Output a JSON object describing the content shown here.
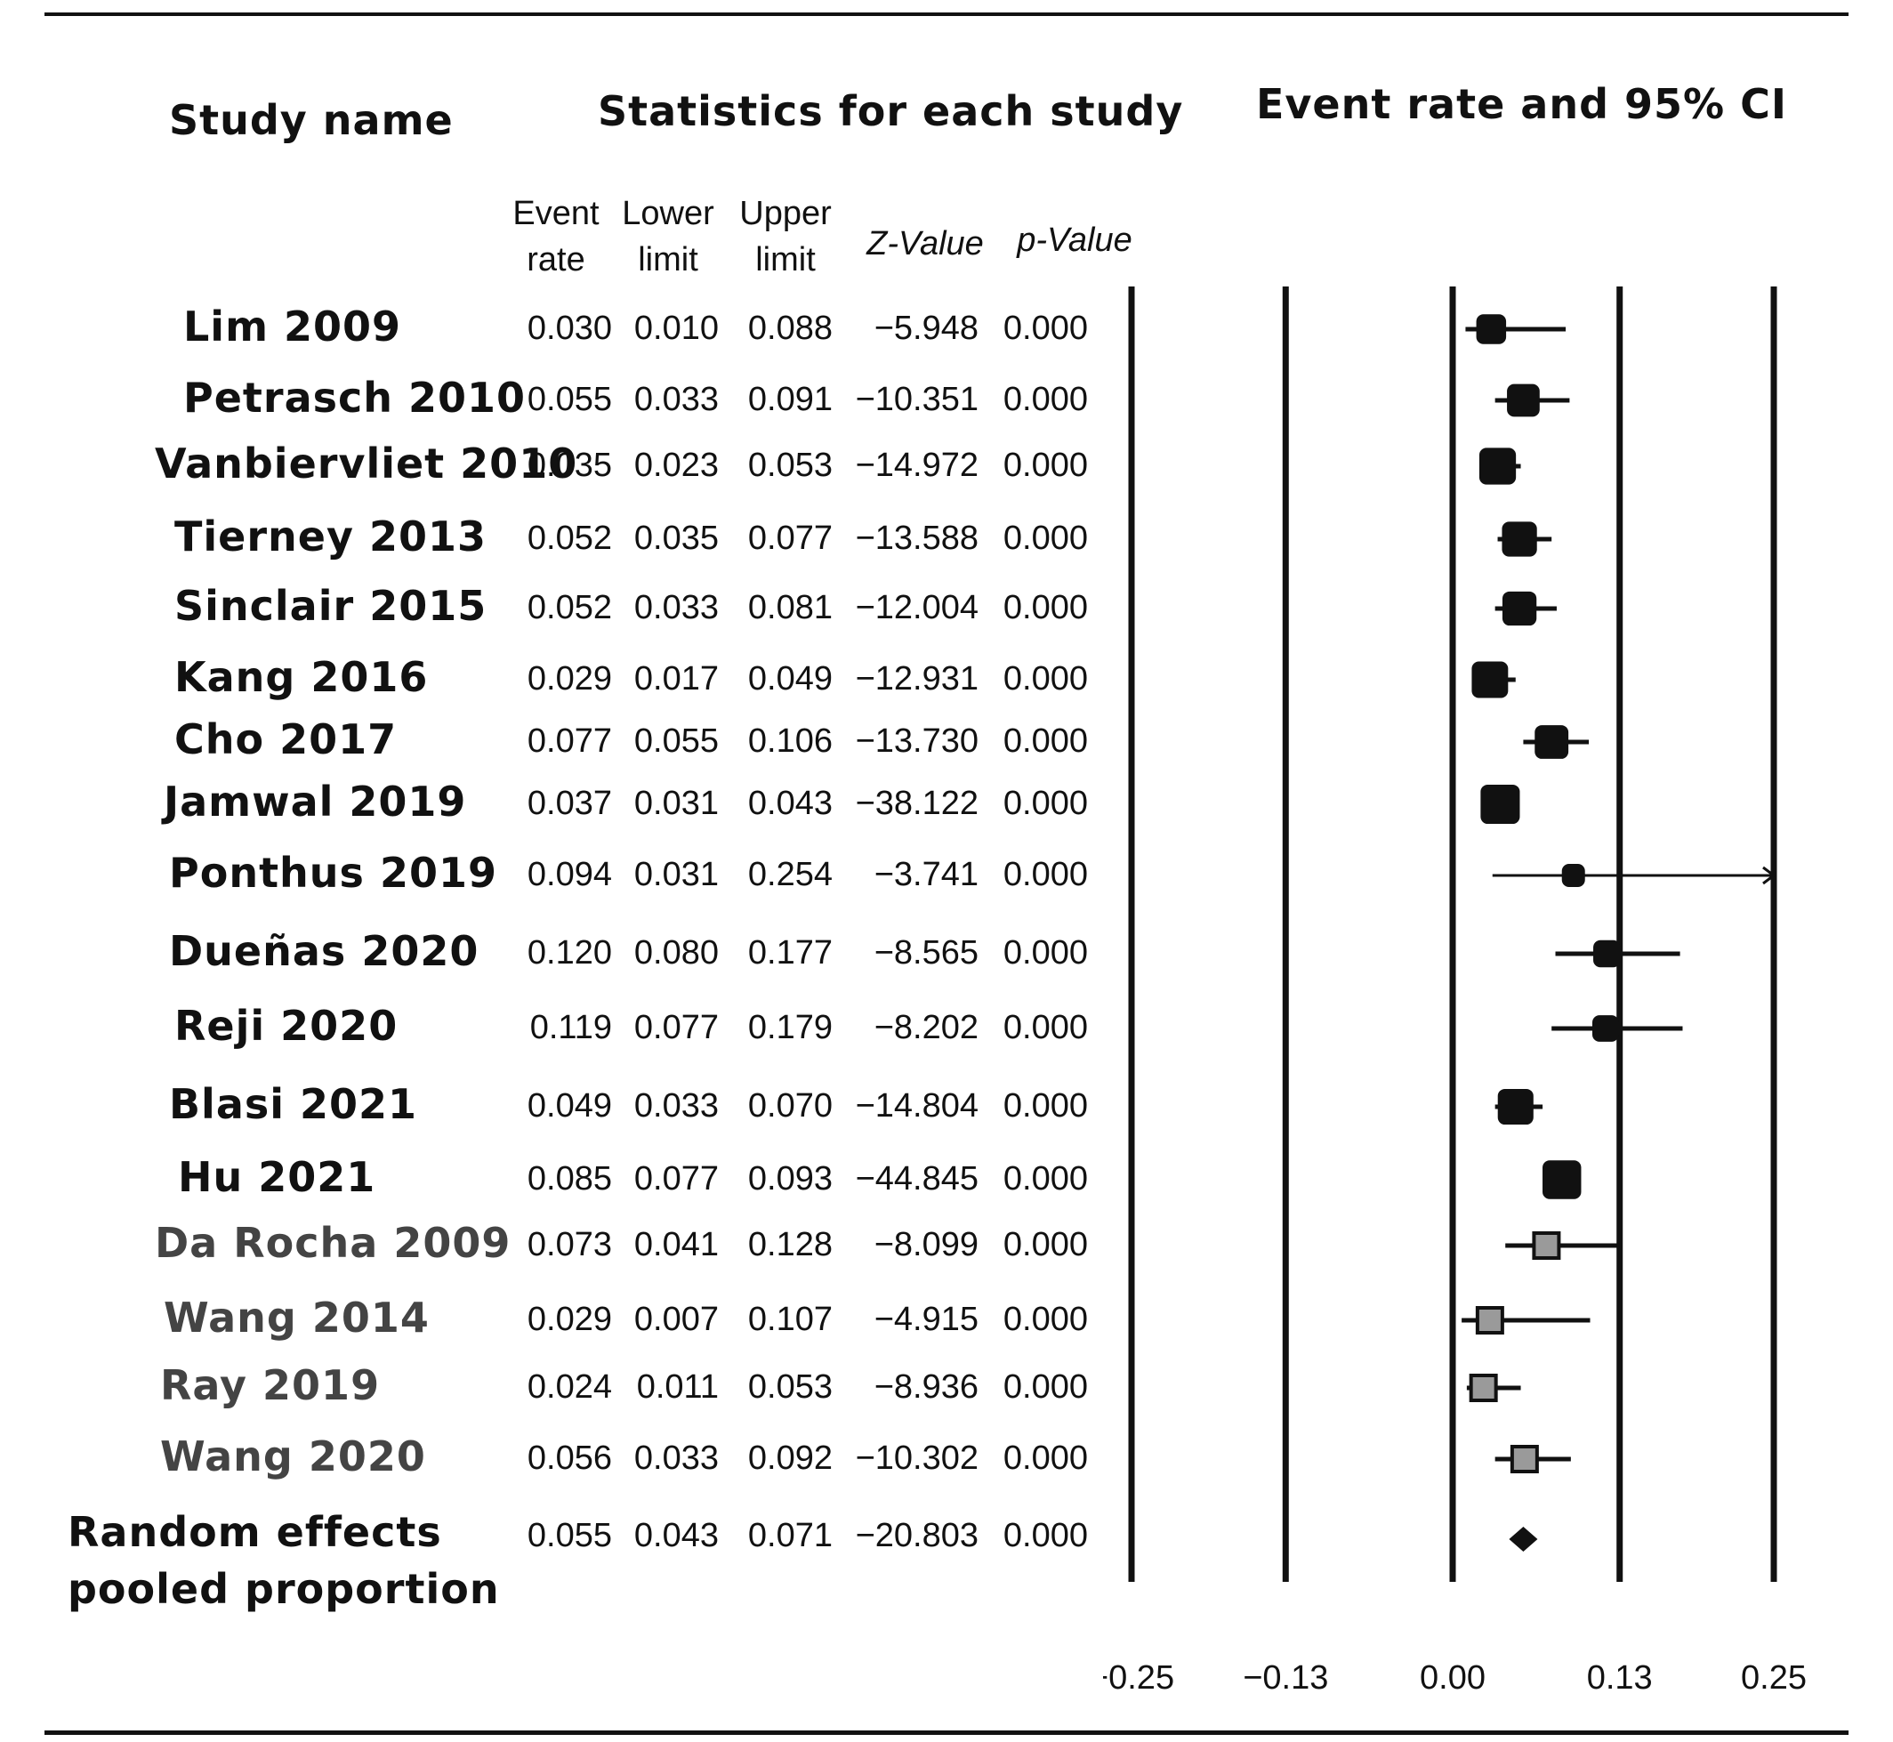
{
  "headers": {
    "study_name": "Study name",
    "statistics": "Statistics for each study",
    "plot_title": "Event rate and 95% CI"
  },
  "columns": {
    "event_rate": [
      "Event",
      "rate"
    ],
    "lower_limit": [
      "Lower",
      "limit"
    ],
    "upper_limit": [
      "Upper",
      "limit"
    ],
    "z_value": "Z-Value",
    "p_value": "p-Value"
  },
  "studies": [
    {
      "name": "Lim 2009",
      "rate": "0.030",
      "lower": "0.010",
      "upper": "0.088",
      "z": "−5.948",
      "p": "0.000"
    },
    {
      "name": "Petrasch 2010",
      "rate": "0.055",
      "lower": "0.033",
      "upper": "0.091",
      "z": "−10.351",
      "p": "0.000"
    },
    {
      "name": "Vanbiervliet 2010",
      "rate": "0.035",
      "lower": "0.023",
      "upper": "0.053",
      "z": "−14.972",
      "p": "0.000"
    },
    {
      "name": "Tierney 2013",
      "rate": "0.052",
      "lower": "0.035",
      "upper": "0.077",
      "z": "−13.588",
      "p": "0.000"
    },
    {
      "name": "Sinclair 2015",
      "rate": "0.052",
      "lower": "0.033",
      "upper": "0.081",
      "z": "−12.004",
      "p": "0.000"
    },
    {
      "name": "Kang 2016",
      "rate": "0.029",
      "lower": "0.017",
      "upper": "0.049",
      "z": "−12.931",
      "p": "0.000"
    },
    {
      "name": "Cho 2017",
      "rate": "0.077",
      "lower": "0.055",
      "upper": "0.106",
      "z": "−13.730",
      "p": "0.000"
    },
    {
      "name": "Jamwal 2019",
      "rate": "0.037",
      "lower": "0.031",
      "upper": "0.043",
      "z": "−38.122",
      "p": "0.000"
    },
    {
      "name": "Ponthus 2019",
      "rate": "0.094",
      "lower": "0.031",
      "upper": "0.254",
      "z": "−3.741",
      "p": "0.000"
    },
    {
      "name": "Dueñas 2020",
      "rate": "0.120",
      "lower": "0.080",
      "upper": "0.177",
      "z": "−8.565",
      "p": "0.000"
    },
    {
      "name": "Reji 2020",
      "rate": "0.119",
      "lower": "0.077",
      "upper": "0.179",
      "z": "−8.202",
      "p": "0.000"
    },
    {
      "name": "Blasi 2021",
      "rate": "0.049",
      "lower": "0.033",
      "upper": "0.070",
      "z": "−14.804",
      "p": "0.000"
    },
    {
      "name": "Hu 2021",
      "rate": "0.085",
      "lower": "0.077",
      "upper": "0.093",
      "z": "−44.845",
      "p": "0.000"
    },
    {
      "name": "Da Rocha 2009",
      "rate": "0.073",
      "lower": "0.041",
      "upper": "0.128",
      "z": "−8.099",
      "p": "0.000"
    },
    {
      "name": "Wang 2014",
      "rate": "0.029",
      "lower": "0.007",
      "upper": "0.107",
      "z": "−4.915",
      "p": "0.000"
    },
    {
      "name": "Ray 2019",
      "rate": "0.024",
      "lower": "0.011",
      "upper": "0.053",
      "z": "−8.936",
      "p": "0.000"
    },
    {
      "name": "Wang 2020",
      "rate": "0.056",
      "lower": "0.033",
      "upper": "0.092",
      "z": "−10.302",
      "p": "0.000"
    }
  ],
  "pooled": {
    "label_line1": "Random effects",
    "label_line2": "pooled proportion",
    "rate": "0.055",
    "lower": "0.043",
    "upper": "0.071",
    "z": "−20.803",
    "p": "0.000"
  },
  "colors": {
    "ink": "#111111",
    "open_label": "#444444",
    "gray_marker": "#9a9a9a"
  },
  "chart_data": {
    "type": "forest",
    "title": "Event rate and 95% CI",
    "xlim": [
      -0.25,
      0.25
    ],
    "xticks": [
      -0.25,
      -0.13,
      0.0,
      0.13,
      0.25
    ],
    "xtick_labels": [
      "−0.25",
      "−0.13",
      "0.00",
      "0.13",
      "0.25"
    ],
    "grid": "vertical lines at tick values",
    "points": [
      {
        "study": "Lim 2009",
        "estimate": 0.03,
        "lower": 0.01,
        "upper": 0.088,
        "marker": "black-square"
      },
      {
        "study": "Petrasch 2010",
        "estimate": 0.055,
        "lower": 0.033,
        "upper": 0.091,
        "marker": "black-square"
      },
      {
        "study": "Vanbiervliet 2010",
        "estimate": 0.035,
        "lower": 0.023,
        "upper": 0.053,
        "marker": "black-square"
      },
      {
        "study": "Tierney 2013",
        "estimate": 0.052,
        "lower": 0.035,
        "upper": 0.077,
        "marker": "black-square"
      },
      {
        "study": "Sinclair 2015",
        "estimate": 0.052,
        "lower": 0.033,
        "upper": 0.081,
        "marker": "black-square"
      },
      {
        "study": "Kang 2016",
        "estimate": 0.029,
        "lower": 0.017,
        "upper": 0.049,
        "marker": "black-square"
      },
      {
        "study": "Cho 2017",
        "estimate": 0.077,
        "lower": 0.055,
        "upper": 0.106,
        "marker": "black-square"
      },
      {
        "study": "Jamwal 2019",
        "estimate": 0.037,
        "lower": 0.031,
        "upper": 0.043,
        "marker": "black-square"
      },
      {
        "study": "Ponthus 2019",
        "estimate": 0.094,
        "lower": 0.031,
        "upper": 0.254,
        "marker": "black-square",
        "arrow_right": true
      },
      {
        "study": "Dueñas 2020",
        "estimate": 0.12,
        "lower": 0.08,
        "upper": 0.177,
        "marker": "black-square"
      },
      {
        "study": "Reji 2020",
        "estimate": 0.119,
        "lower": 0.077,
        "upper": 0.179,
        "marker": "black-square"
      },
      {
        "study": "Blasi 2021",
        "estimate": 0.049,
        "lower": 0.033,
        "upper": 0.07,
        "marker": "black-square"
      },
      {
        "study": "Hu 2021",
        "estimate": 0.085,
        "lower": 0.077,
        "upper": 0.093,
        "marker": "black-square"
      },
      {
        "study": "Da Rocha 2009",
        "estimate": 0.073,
        "lower": 0.041,
        "upper": 0.128,
        "marker": "gray-square"
      },
      {
        "study": "Wang 2014",
        "estimate": 0.029,
        "lower": 0.007,
        "upper": 0.107,
        "marker": "gray-square"
      },
      {
        "study": "Ray 2019",
        "estimate": 0.024,
        "lower": 0.011,
        "upper": 0.053,
        "marker": "gray-square"
      },
      {
        "study": "Wang 2020",
        "estimate": 0.056,
        "lower": 0.033,
        "upper": 0.092,
        "marker": "gray-square"
      }
    ],
    "pooled": {
      "label": "Random effects pooled proportion",
      "estimate": 0.055,
      "lower": 0.043,
      "upper": 0.071,
      "marker": "diamond"
    }
  }
}
